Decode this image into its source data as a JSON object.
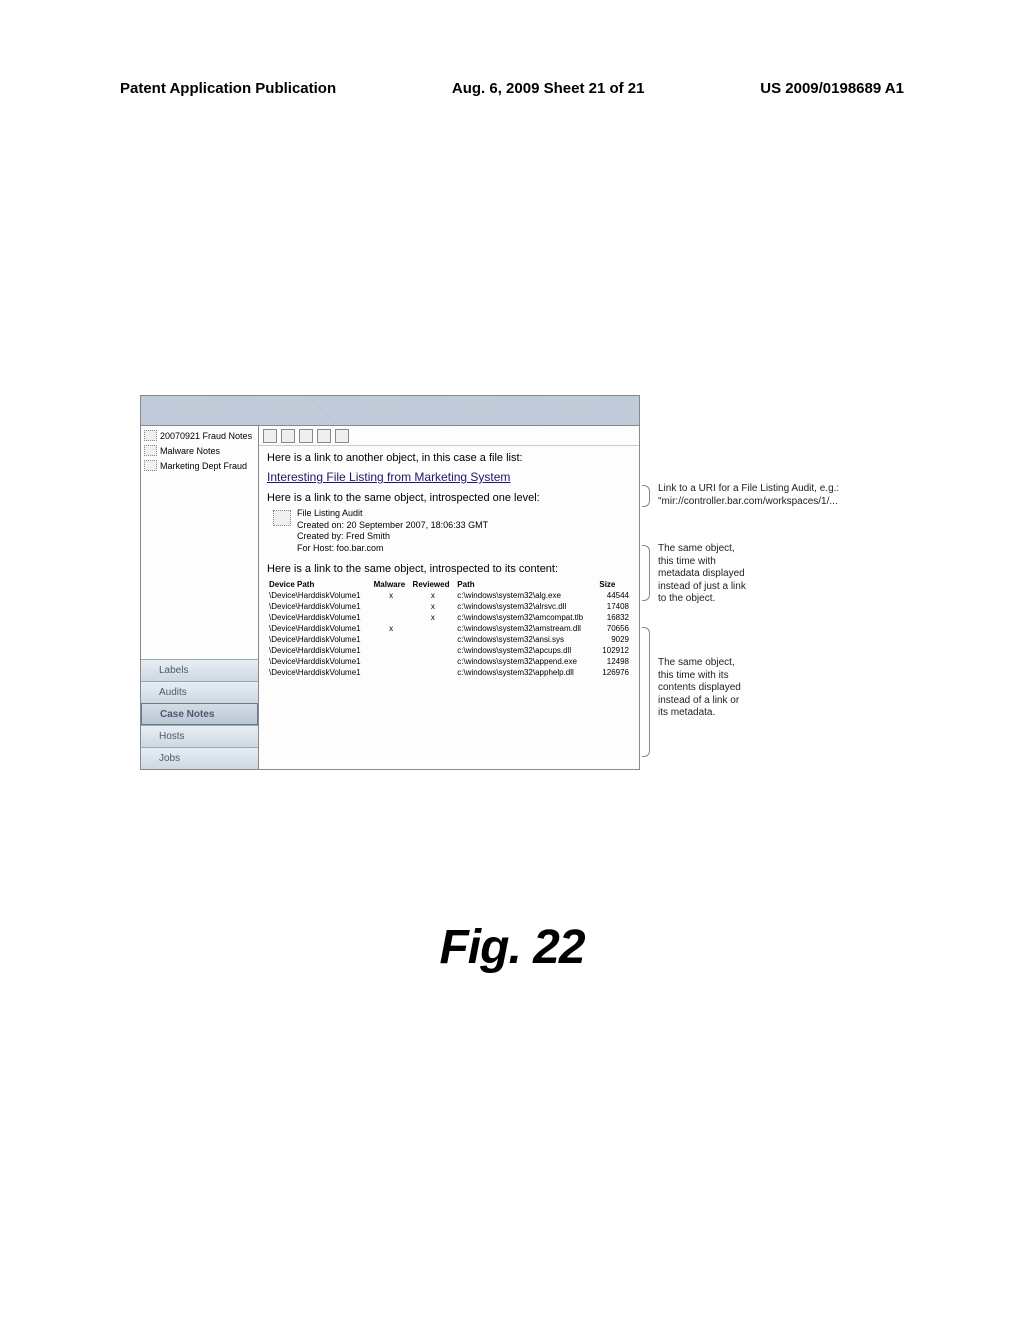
{
  "header": {
    "left": "Patent Application Publication",
    "center": "Aug. 6, 2009  Sheet 21 of 21",
    "right": "US 2009/0198689 A1"
  },
  "sidebar": {
    "top_items": [
      {
        "label": "20070921 Fraud Notes"
      },
      {
        "label": "Malware Notes"
      },
      {
        "label": "Marketing Dept Fraud"
      }
    ],
    "bottom_items": [
      {
        "label": "Labels",
        "active": false
      },
      {
        "label": "Audits",
        "active": false
      },
      {
        "label": "Case Notes",
        "active": true
      },
      {
        "label": "Hosts",
        "active": false
      },
      {
        "label": "Jobs",
        "active": false
      }
    ]
  },
  "content": {
    "line1": "Here is a link to another object, in this case a file list:",
    "link_text": "Interesting File Listing from Marketing System",
    "line2": "Here is a link to the same object, introspected one level:",
    "meta": {
      "title": "File Listing Audit",
      "created_on": "Created on: 20 September 2007, 18:06:33 GMT",
      "created_by": "Created by: Fred Smith",
      "for_host": "For Host: foo.bar.com"
    },
    "line3": "Here is a link to the same object, introspected to its content:",
    "table": {
      "columns": [
        "Device Path",
        "Malware",
        "Reviewed",
        "Path",
        "Size"
      ],
      "rows": [
        [
          "\\Device\\HarddiskVolume1",
          "x",
          "x",
          "c:\\windows\\system32\\alg.exe",
          "44544"
        ],
        [
          "\\Device\\HarddiskVolume1",
          "",
          "x",
          "c:\\windows\\system32\\alrsvc.dll",
          "17408"
        ],
        [
          "\\Device\\HarddiskVolume1",
          "",
          "x",
          "c:\\windows\\system32\\amcompat.tlb",
          "16832"
        ],
        [
          "\\Device\\HarddiskVolume1",
          "x",
          "",
          "c:\\windows\\system32\\amstream.dll",
          "70656"
        ],
        [
          "\\Device\\HarddiskVolume1",
          "",
          "",
          "c:\\windows\\system32\\ansi.sys",
          "9029"
        ],
        [
          "\\Device\\HarddiskVolume1",
          "",
          "",
          "c:\\windows\\system32\\apcups.dll",
          "102912"
        ],
        [
          "\\Device\\HarddiskVolume1",
          "",
          "",
          "c:\\windows\\system32\\append.exe",
          "12498"
        ],
        [
          "\\Device\\HarddiskVolume1",
          "",
          "",
          "c:\\windows\\system32\\apphelp.dll",
          "126976"
        ]
      ]
    }
  },
  "callouts": {
    "c1": "Link to a URI for a File Listing Audit, e.g.:\n\"mir://controller.bar.com/workspaces/1/...",
    "c2": "The same object,\nthis time with\nmetadata displayed\ninstead of just a link\nto the object.",
    "c3": "The same object,\nthis time with its\ncontents displayed\ninstead of a link or\nits metadata."
  },
  "figure_label": "Fig. 22",
  "colors": {
    "text": "#000000",
    "link": "#1a1a6a",
    "sidebar_grad_top": "#e8eef4",
    "sidebar_grad_bot": "#cdd8e2",
    "topbar_bg": "#c0ccd8"
  }
}
